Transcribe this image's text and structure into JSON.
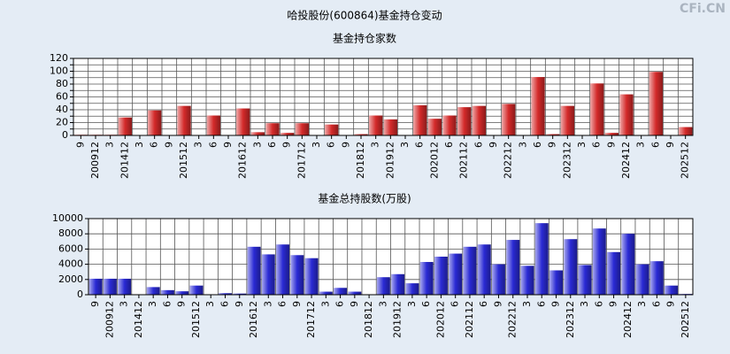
{
  "title": "哈投股份(600864)基金持仓变动",
  "watermark": "CFi.CN",
  "chart_data": [
    {
      "type": "bar",
      "title": "基金持仓家数",
      "color": "#d42a2a",
      "grid": true,
      "categories": [
        "9",
        "200912",
        "3",
        "201412",
        "3",
        "6",
        "9",
        "201512",
        "3",
        "6",
        "9",
        "201612",
        "3",
        "6",
        "9",
        "201712",
        "3",
        "6",
        "9",
        "201812",
        "3",
        "201912",
        "3",
        "6",
        "202012",
        "6",
        "202112",
        "6",
        "9",
        "202212",
        "3",
        "6",
        "9",
        "202312",
        "3",
        "6",
        "9",
        "202412",
        "3",
        "6",
        "9",
        "202512"
      ],
      "values": [
        1,
        1,
        1,
        28,
        0,
        39,
        0,
        46,
        0,
        31,
        0,
        42,
        5,
        19,
        4,
        19,
        0,
        17,
        0,
        2,
        31,
        25,
        0,
        47,
        26,
        31,
        44,
        46,
        0,
        49,
        0,
        91,
        2,
        46,
        0,
        81,
        4,
        64,
        0,
        99,
        0,
        13
      ],
      "ylim": [
        0,
        120
      ],
      "yticks": [
        0,
        10,
        20,
        30,
        40,
        50,
        60,
        70,
        80,
        90,
        100,
        110,
        120
      ],
      "ytick_labels_shown": [
        0,
        20,
        40,
        60,
        80,
        100,
        120
      ]
    },
    {
      "type": "bar",
      "title": "基金总持股数(万股)",
      "color": "#2a2ad4",
      "grid": true,
      "categories": [
        "9",
        "200912",
        "3",
        "201412",
        "3",
        "6",
        "9",
        "201512",
        "3",
        "6",
        "9",
        "201612",
        "3",
        "6",
        "9",
        "201712",
        "3",
        "6",
        "9",
        "201812",
        "3",
        "201912",
        "3",
        "6",
        "202012",
        "6",
        "202112",
        "6",
        "9",
        "202212",
        "3",
        "6",
        "9",
        "202312",
        "3",
        "6",
        "9",
        "202412",
        "3",
        "6",
        "9",
        "202512"
      ],
      "values": [
        2100,
        2100,
        2100,
        0,
        1000,
        600,
        450,
        1200,
        0,
        200,
        150,
        6300,
        5300,
        6600,
        5200,
        4800,
        400,
        900,
        400,
        0,
        2300,
        2700,
        1500,
        4300,
        5000,
        5400,
        6300,
        6600,
        4000,
        7200,
        3800,
        9400,
        3200,
        7300,
        3900,
        8700,
        5600,
        8000,
        4000,
        4400,
        1200,
        100
      ],
      "ylim": [
        0,
        10000
      ],
      "yticks": [
        0,
        2000,
        4000,
        6000,
        8000,
        10000
      ]
    }
  ]
}
